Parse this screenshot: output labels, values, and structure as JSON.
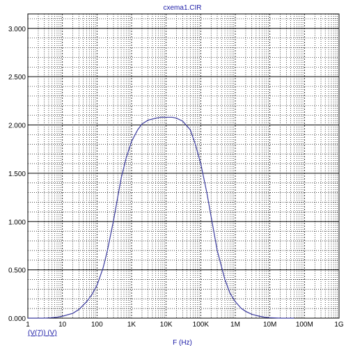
{
  "chart_data": {
    "type": "line",
    "title": "cxema1.CIR",
    "xlabel": "F (Hz)",
    "ylabel": "",
    "trace_label": "(V(7)) (V)",
    "x_scale": "log",
    "xlim": [
      1,
      1000000000
    ],
    "ylim": [
      0,
      3.15
    ],
    "x_ticks": [
      {
        "value": 1,
        "label": "1"
      },
      {
        "value": 10,
        "label": "10"
      },
      {
        "value": 100,
        "label": "100"
      },
      {
        "value": 1000,
        "label": "1K"
      },
      {
        "value": 10000,
        "label": "10K"
      },
      {
        "value": 100000,
        "label": "100K"
      },
      {
        "value": 1000000,
        "label": "1M"
      },
      {
        "value": 10000000,
        "label": "10M"
      },
      {
        "value": 100000000,
        "label": "100M"
      },
      {
        "value": 1000000000,
        "label": "1G"
      }
    ],
    "y_ticks": [
      {
        "value": 0,
        "label": "0.000"
      },
      {
        "value": 0.5,
        "label": "0.500"
      },
      {
        "value": 1.0,
        "label": "1.000"
      },
      {
        "value": 1.5,
        "label": "1.500"
      },
      {
        "value": 2.0,
        "label": "2.000"
      },
      {
        "value": 2.5,
        "label": "2.500"
      },
      {
        "value": 3.0,
        "label": "3.000"
      }
    ],
    "grid": true,
    "line_color": "#3a3a9e",
    "grid_color": "#000000",
    "series": [
      {
        "x": [
          1,
          2,
          3,
          5,
          7,
          10,
          20,
          30,
          50,
          70,
          100,
          150,
          200,
          300,
          500,
          700,
          1000,
          1500,
          2000,
          3000,
          5000,
          7000,
          10000,
          15000,
          20000,
          30000,
          50000,
          70000,
          100000,
          150000,
          200000,
          300000,
          500000,
          700000,
          1000000,
          1500000,
          2000000,
          3000000,
          5000000,
          7000000,
          10000000,
          20000000,
          50000000
        ],
        "y": [
          0.0,
          0.0,
          0.0,
          0.005,
          0.01,
          0.02,
          0.05,
          0.09,
          0.17,
          0.24,
          0.34,
          0.52,
          0.7,
          1.01,
          1.45,
          1.66,
          1.83,
          1.95,
          2.01,
          2.05,
          2.07,
          2.08,
          2.08,
          2.08,
          2.07,
          2.04,
          1.95,
          1.8,
          1.6,
          1.3,
          1.05,
          0.7,
          0.4,
          0.26,
          0.17,
          0.1,
          0.07,
          0.04,
          0.02,
          0.01,
          0.005,
          0.0,
          0.0
        ]
      }
    ]
  }
}
